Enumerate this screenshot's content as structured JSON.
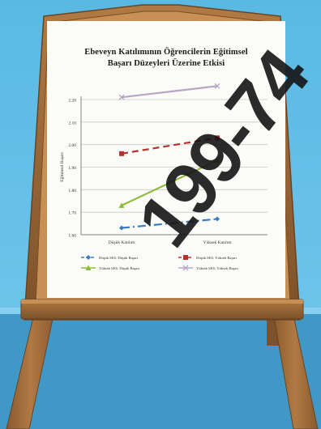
{
  "watermark": "199-74",
  "chart_data": {
    "type": "line",
    "title": "Ebeveyn Katılımının Öğrencilerin Eğitimsel Başarı Düzeyleri Üzerine Etkisi",
    "title_lines": [
      "Ebeveyn Katılımının Öğrencilerin Eğitimsel",
      "Başarı Düzeyleri Üzerine Etkisi"
    ],
    "xlabel": "",
    "ylabel": "Eğitimsel Başarı",
    "categories": [
      "Düşük Katılım",
      "Yüksek Katılım"
    ],
    "ylim": [
      1.6,
      2.6
    ],
    "yticks": [
      "1.60",
      "1.70",
      "1.80",
      "1.90",
      "2.00",
      "2.10",
      "2.20"
    ],
    "series": [
      {
        "name": "Düşük SES, Düşük Başarı",
        "values": [
          1.63,
          1.67
        ],
        "color": "#3a7cc4",
        "dash": "10,4,2,4",
        "marker": "diamond"
      },
      {
        "name": "Düşük SES, Yüksek Başarı",
        "values": [
          1.96,
          2.03
        ],
        "color": "#b8302c",
        "dash": "8,5",
        "marker": "square"
      },
      {
        "name": "Yüksek SES, Düşük Başarı",
        "values": [
          1.73,
          1.93
        ],
        "color": "#8bbd3a",
        "dash": "",
        "marker": "triangle"
      },
      {
        "name": "Yüksek SES, Yüksek Başarı",
        "values": [
          2.21,
          2.26
        ],
        "color": "#b7a4c6",
        "dash": "",
        "marker": "x"
      }
    ],
    "legend_position": "bottom",
    "grid": true
  }
}
